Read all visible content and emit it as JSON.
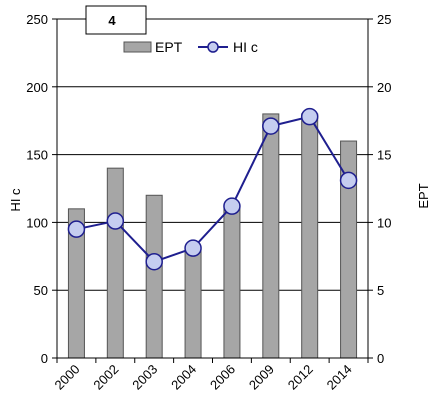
{
  "chart_data": {
    "type": "bar+line",
    "panel_label": "4",
    "categories": [
      "2000",
      "2002",
      "2003",
      "2004",
      "2006",
      "2009",
      "2012",
      "2014"
    ],
    "series": [
      {
        "name": "EPT",
        "type": "bar",
        "axis": "right",
        "values": [
          11,
          14,
          12,
          8,
          11,
          18,
          18,
          16
        ],
        "color": "#a6a6a6"
      },
      {
        "name": "HI c",
        "type": "line",
        "axis": "left",
        "values": [
          95,
          101,
          71,
          81,
          112,
          171,
          178,
          131
        ],
        "color": "#1f1f8f",
        "marker_fill": "#c5cdf0"
      }
    ],
    "left_axis": {
      "label": "HI c",
      "ylim": [
        0,
        250
      ],
      "ticks": [
        "0",
        "50",
        "100",
        "150",
        "200",
        "250"
      ]
    },
    "right_axis": {
      "label": "EPT",
      "ylim": [
        0,
        25
      ],
      "ticks": [
        "0",
        "5",
        "10",
        "15",
        "20",
        "25"
      ]
    },
    "legend": {
      "placement": "top-center",
      "items": [
        "EPT",
        "HI c"
      ]
    },
    "grid": true
  }
}
